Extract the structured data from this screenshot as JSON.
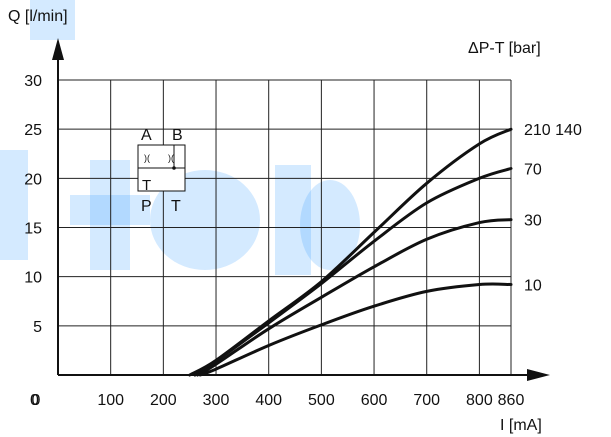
{
  "chart_data": {
    "type": "line",
    "ylabel": "Q [l/min]",
    "xlabel": "I [mA]",
    "legend_title": "ΔP-T [bar]",
    "x_ticks": [
      0,
      100,
      200,
      300,
      400,
      500,
      600,
      700,
      800,
      860
    ],
    "y_ticks": [
      5,
      10,
      15,
      20,
      25,
      30
    ],
    "y_origin_label": "0",
    "xlim": [
      0,
      860
    ],
    "ylim": [
      0,
      30
    ],
    "grid": true,
    "series": [
      {
        "name": "210 140",
        "x": [
          250,
          300,
          400,
          500,
          600,
          700,
          800,
          860
        ],
        "y": [
          0,
          1.5,
          5.5,
          9.5,
          14.5,
          19.5,
          23.5,
          25
        ]
      },
      {
        "name": "70",
        "x": [
          260,
          300,
          400,
          500,
          600,
          700,
          800,
          860
        ],
        "y": [
          0,
          1.4,
          5.3,
          9.3,
          13.6,
          17.5,
          20,
          21
        ]
      },
      {
        "name": "30",
        "x": [
          265,
          300,
          400,
          500,
          600,
          700,
          800,
          860
        ],
        "y": [
          0,
          1.1,
          4.7,
          7.9,
          11,
          13.8,
          15.5,
          15.8
        ]
      },
      {
        "name": "10",
        "x": [
          270,
          300,
          400,
          500,
          600,
          700,
          800,
          860
        ],
        "y": [
          0,
          0.6,
          3,
          5.1,
          7,
          8.5,
          9.2,
          9.2
        ]
      }
    ],
    "inset_symbol": {
      "top_labels": [
        "A",
        "B"
      ],
      "bottom_labels": [
        "P",
        "T"
      ],
      "inner_label": "T"
    }
  }
}
